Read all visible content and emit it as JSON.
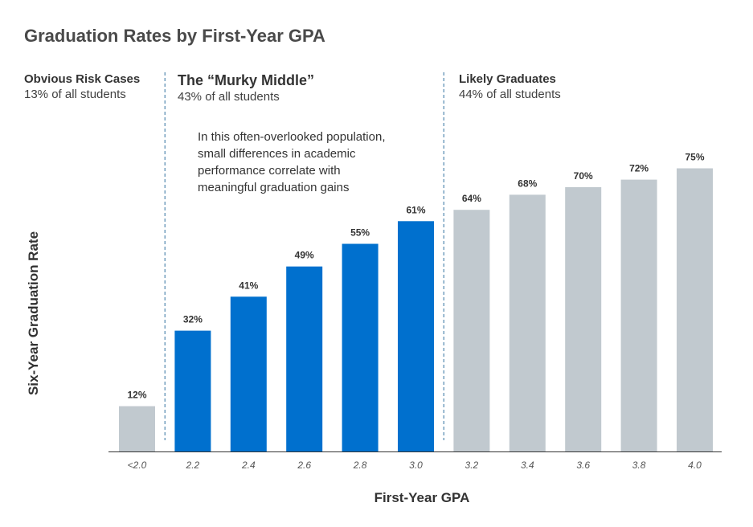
{
  "chart_data": {
    "type": "bar",
    "title": "Graduation Rates by First-Year GPA",
    "xlabel": "First-Year GPA",
    "ylabel": "Six-Year Graduation Rate",
    "categories": [
      "<2.0",
      "2.2",
      "2.4",
      "2.6",
      "2.8",
      "3.0",
      "3.2",
      "3.4",
      "3.6",
      "3.8",
      "4.0"
    ],
    "values": [
      12,
      32,
      41,
      49,
      55,
      61,
      64,
      68,
      70,
      72,
      75
    ],
    "data_labels": [
      "12%",
      "32%",
      "41%",
      "49%",
      "55%",
      "61%",
      "64%",
      "68%",
      "70%",
      "72%",
      "75%"
    ],
    "bar_colors": [
      "#c1c9cf",
      "#0070ce",
      "#0070ce",
      "#0070ce",
      "#0070ce",
      "#0070ce",
      "#c1c9cf",
      "#c1c9cf",
      "#c1c9cf",
      "#c1c9cf",
      "#c1c9cf"
    ],
    "ylim": [
      0,
      100
    ],
    "grid": false,
    "segments": [
      {
        "title": "Obvious Risk Cases",
        "subtitle": "13% of all students"
      },
      {
        "title": "The “Murky Middle”",
        "subtitle": "43% of all students"
      },
      {
        "title": "Likely  Graduates",
        "subtitle": "44% of all students"
      }
    ],
    "annotation": [
      "In this often-overlooked  population,",
      "small differences in academic",
      "performance correlate with",
      "meaningful graduation gains"
    ]
  },
  "colors": {
    "highlight": "#0070ce",
    "neutral": "#c1c9cf",
    "divider": "#2f6f9e"
  }
}
